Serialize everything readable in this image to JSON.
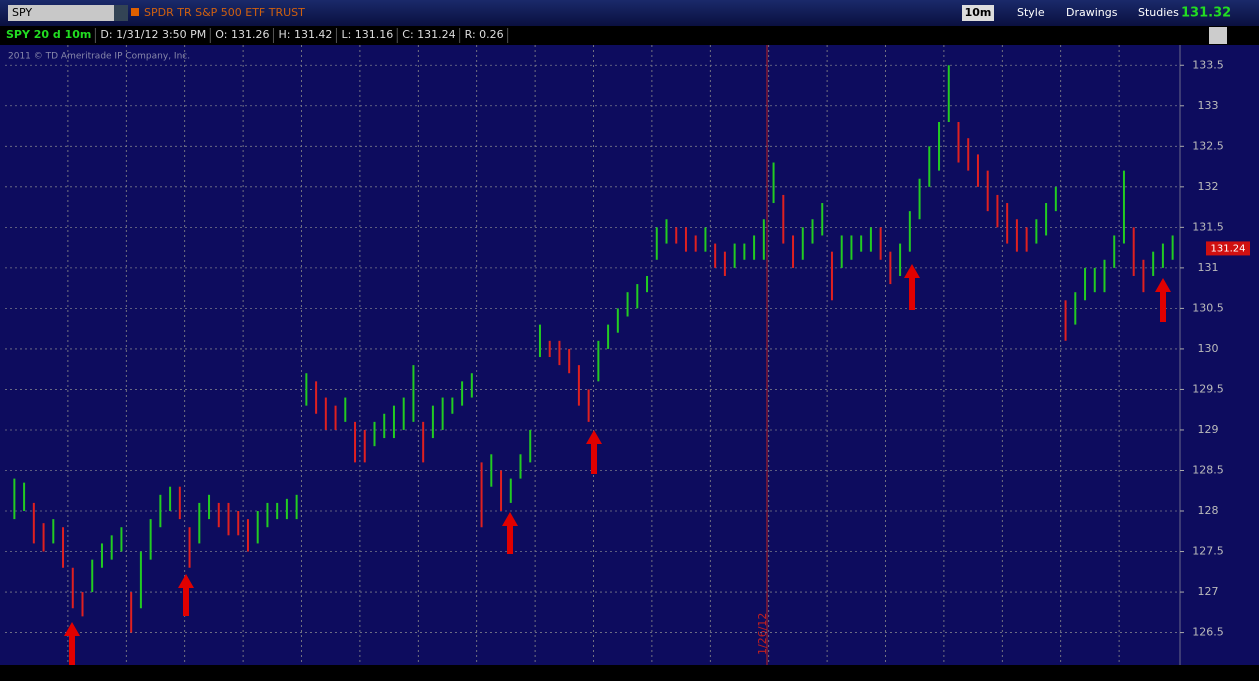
{
  "header": {
    "symbol": "SPY",
    "description": "SPDR TR S&P 500 ETF TRUST",
    "interval": "10m",
    "buttons": [
      "Style",
      "Drawings",
      "Studies"
    ],
    "last_price": "131.32"
  },
  "info_bar": [
    "SPY 20 d 10m",
    "D: 1/31/12 3:50 PM",
    "O: 131.26",
    "H: 131.42",
    "L: 131.16",
    "C: 131.24",
    "R: 0.26"
  ],
  "copyright": "2011 © TD Ameritrade IP Company, Inc.",
  "date_marker": "1/26/12",
  "chart_data": {
    "type": "ohlc",
    "ylim": [
      126.1,
      133.75
    ],
    "yticks": [
      126.5,
      127,
      127.5,
      128,
      128.5,
      129,
      129.5,
      130,
      130.5,
      131,
      131.5,
      132,
      132.5,
      133,
      133.5
    ],
    "current_price": 131.24,
    "grid": true,
    "up_color": "#22cc22",
    "down_color": "#e02020",
    "high": [
      128.4,
      128.35,
      128.1,
      127.85,
      127.9,
      127.8,
      127.3,
      127.0,
      127.4,
      127.6,
      127.7,
      127.8,
      127.0,
      127.5,
      127.9,
      128.2,
      128.3,
      128.3,
      127.8,
      128.1,
      128.2,
      128.1,
      128.1,
      128.0,
      127.9,
      128.0,
      128.1,
      128.1,
      128.15,
      128.2,
      129.7,
      129.6,
      129.4,
      129.3,
      129.4,
      129.1,
      129.0,
      129.1,
      129.2,
      129.3,
      129.4,
      129.8,
      129.1,
      129.3,
      129.4,
      129.4,
      129.6,
      129.7,
      128.6,
      128.7,
      128.5,
      128.4,
      128.7,
      129.0,
      130.3,
      130.1,
      130.1,
      130.0,
      129.8,
      129.5,
      130.1,
      130.3,
      130.5,
      130.7,
      130.8,
      130.9,
      131.5,
      131.6,
      131.5,
      131.5,
      131.4,
      131.5,
      131.3,
      131.2,
      131.3,
      131.3,
      131.4,
      131.6,
      132.3,
      131.9,
      131.4,
      131.5,
      131.6,
      131.8,
      131.2,
      131.4,
      131.4,
      131.4,
      131.5,
      131.5,
      131.2,
      131.3,
      131.7,
      132.1,
      132.5,
      132.8,
      133.5,
      132.8,
      132.6,
      132.4,
      132.2,
      131.9,
      131.8,
      131.6,
      131.5,
      131.6,
      131.8,
      132.0,
      130.6,
      130.7,
      131.0,
      131.0,
      131.1,
      131.4,
      132.2,
      131.5,
      131.1,
      131.2,
      131.3,
      131.4
    ],
    "low": [
      127.9,
      128.0,
      127.6,
      127.5,
      127.6,
      127.3,
      126.8,
      126.7,
      127.0,
      127.3,
      127.4,
      127.5,
      126.5,
      126.8,
      127.4,
      127.8,
      128.0,
      127.9,
      127.3,
      127.6,
      127.9,
      127.8,
      127.7,
      127.7,
      127.5,
      127.6,
      127.8,
      127.9,
      127.9,
      127.9,
      129.3,
      129.2,
      129.0,
      129.0,
      129.1,
      128.6,
      128.6,
      128.8,
      128.9,
      128.9,
      129.0,
      129.1,
      128.6,
      128.9,
      129.0,
      129.2,
      129.3,
      129.4,
      127.8,
      128.3,
      128.0,
      128.1,
      128.4,
      128.6,
      129.9,
      129.9,
      129.8,
      129.7,
      129.3,
      129.1,
      129.6,
      130.0,
      130.2,
      130.4,
      130.5,
      130.7,
      131.1,
      131.3,
      131.3,
      131.2,
      131.2,
      131.2,
      131.0,
      130.9,
      131.0,
      131.1,
      131.1,
      131.1,
      131.8,
      131.3,
      131.0,
      131.1,
      131.3,
      131.4,
      130.6,
      131.0,
      131.1,
      131.2,
      131.2,
      131.1,
      130.8,
      130.9,
      131.2,
      131.6,
      132.0,
      132.2,
      132.8,
      132.3,
      132.2,
      132.0,
      131.7,
      131.5,
      131.3,
      131.2,
      131.2,
      131.3,
      131.4,
      131.7,
      130.1,
      130.3,
      130.6,
      130.7,
      130.7,
      131.0,
      131.3,
      130.9,
      130.7,
      130.9,
      131.0,
      131.1
    ]
  }
}
